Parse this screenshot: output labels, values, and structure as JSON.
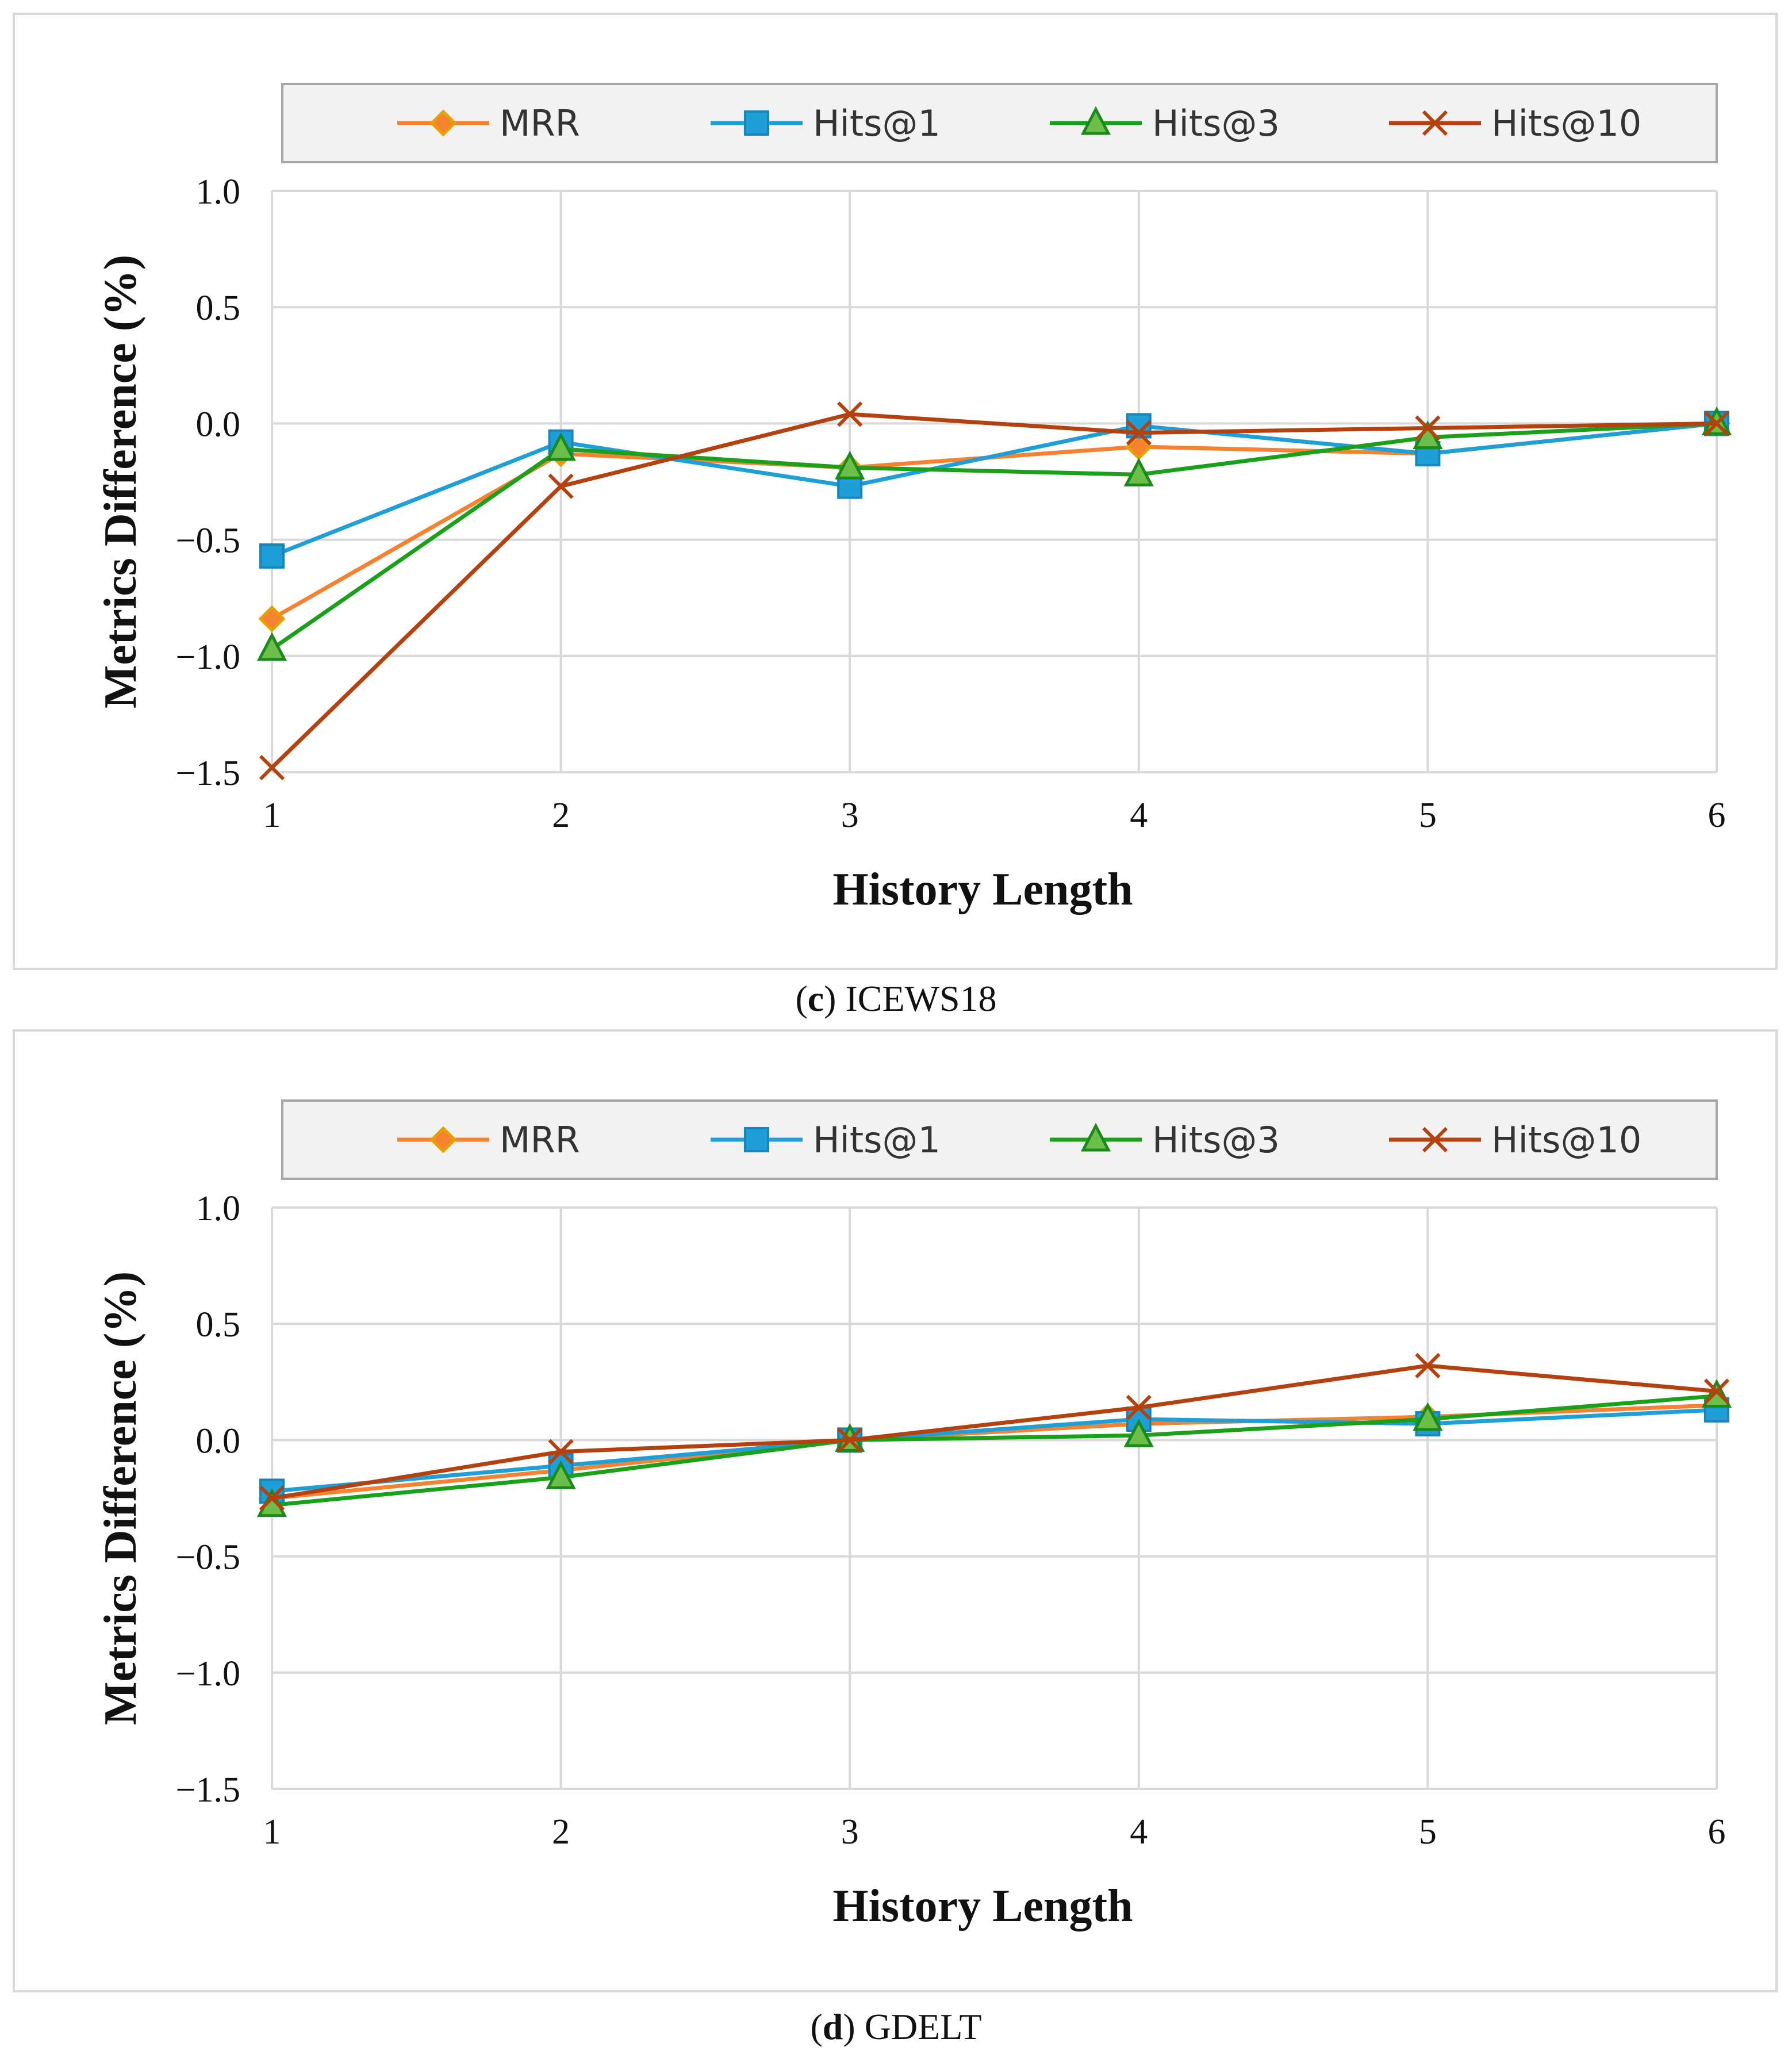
{
  "chart_data": [
    {
      "id": "c",
      "type": "line",
      "title": "",
      "caption_label": "c",
      "caption_text": "ICEWS18",
      "xlabel": "History Length",
      "ylabel": "Metrics  Difference (%)",
      "categories": [
        "1",
        "2",
        "3",
        "4",
        "5",
        "6"
      ],
      "x": [
        1,
        2,
        3,
        4,
        5,
        6
      ],
      "ylim": [
        -1.5,
        1.0
      ],
      "yticks": [
        1.0,
        0.5,
        0.0,
        -0.5,
        -1.0,
        -1.5
      ],
      "ytick_labels": [
        "1.0",
        "0.5",
        "0.0",
        "−0.5",
        "−1.0",
        "−1.5"
      ],
      "grid": true,
      "legend_position": "top",
      "series": [
        {
          "name": "MRR",
          "color": "#f58230",
          "edge": "#e8a000",
          "marker": "diamond",
          "values": [
            -0.84,
            -0.13,
            -0.19,
            -0.1,
            -0.13,
            0.0
          ]
        },
        {
          "name": "Hits@1",
          "color": "#1f9fd8",
          "edge": "#1f9fd8",
          "marker": "square",
          "values": [
            -0.57,
            -0.08,
            -0.27,
            -0.01,
            -0.13,
            0.0
          ]
        },
        {
          "name": "Hits@3",
          "color": "#1aa11a",
          "edge": "#1a8a1a",
          "marker": "triangle",
          "values": [
            -0.97,
            -0.11,
            -0.19,
            -0.22,
            -0.06,
            0.0
          ]
        },
        {
          "name": "Hits@10",
          "color": "#b5420e",
          "edge": "#b5420e",
          "marker": "x",
          "values": [
            -1.48,
            -0.27,
            0.04,
            -0.04,
            -0.02,
            0.0
          ]
        }
      ]
    },
    {
      "id": "d",
      "type": "line",
      "title": "",
      "caption_label": "d",
      "caption_text": "GDELT",
      "xlabel": "History Length",
      "ylabel": "Metrics  Difference (%)",
      "categories": [
        "1",
        "2",
        "3",
        "4",
        "5",
        "6"
      ],
      "x": [
        1,
        2,
        3,
        4,
        5,
        6
      ],
      "ylim": [
        -1.5,
        1.0
      ],
      "yticks": [
        1.0,
        0.5,
        0.0,
        -0.5,
        -1.0,
        -1.5
      ],
      "ytick_labels": [
        "1.0",
        "0.5",
        "0.0",
        "−0.5",
        "−1.0",
        "−1.5"
      ],
      "grid": true,
      "legend_position": "top",
      "series": [
        {
          "name": "MRR",
          "color": "#f58230",
          "edge": "#e8a000",
          "marker": "diamond",
          "values": [
            -0.25,
            -0.13,
            0.0,
            0.07,
            0.1,
            0.15
          ]
        },
        {
          "name": "Hits@1",
          "color": "#1f9fd8",
          "edge": "#1f9fd8",
          "marker": "square",
          "values": [
            -0.22,
            -0.11,
            0.0,
            0.09,
            0.07,
            0.13
          ]
        },
        {
          "name": "Hits@3",
          "color": "#1aa11a",
          "edge": "#1a8a1a",
          "marker": "triangle",
          "values": [
            -0.28,
            -0.16,
            0.0,
            0.02,
            0.09,
            0.19
          ]
        },
        {
          "name": "Hits@10",
          "color": "#b5420e",
          "edge": "#b5420e",
          "marker": "x",
          "values": [
            -0.25,
            -0.05,
            0.0,
            0.14,
            0.32,
            0.21
          ]
        }
      ]
    }
  ]
}
